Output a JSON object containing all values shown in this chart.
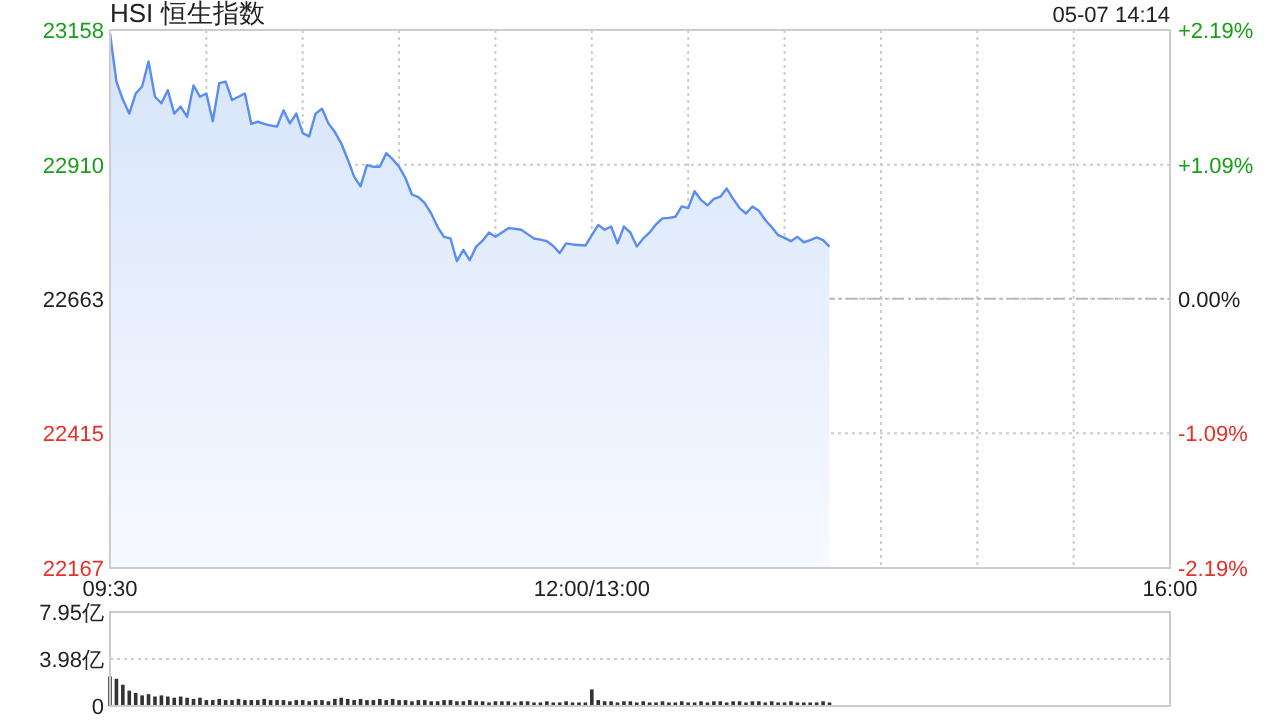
{
  "chart_data": [
    {
      "type": "area",
      "title": "HSI 恒生指数",
      "annotations": [
        "05-07 14:14"
      ],
      "color": "#5b8def",
      "categories": [
        "09:30",
        null,
        null,
        null,
        null,
        null,
        null,
        null,
        null,
        null,
        null,
        null,
        null,
        null,
        null,
        null,
        null,
        null,
        null,
        null,
        null,
        null,
        null,
        null,
        null,
        null,
        null,
        null,
        null,
        null,
        null,
        null,
        null,
        null,
        null,
        null,
        null,
        null,
        null,
        null,
        null,
        null,
        null,
        null,
        null,
        null,
        null,
        null,
        null,
        null,
        null,
        null,
        null,
        null,
        null,
        null,
        null,
        null,
        null,
        null,
        null,
        null,
        null,
        null,
        null,
        null,
        null,
        null,
        null,
        null,
        null,
        null,
        null,
        null,
        null,
        "12:00/13:00",
        null,
        null,
        null,
        null,
        null,
        null,
        null,
        null,
        null,
        null,
        null,
        null,
        null,
        null,
        null,
        null,
        null,
        null,
        null,
        null,
        null,
        null,
        null,
        null,
        null,
        null,
        null,
        null,
        null,
        null,
        null,
        null,
        null,
        null,
        null,
        null,
        null,
        null,
        null,
        null,
        null,
        null,
        null,
        null,
        null,
        null,
        null,
        null,
        null,
        null,
        null,
        null,
        null,
        null,
        null,
        null,
        null,
        null,
        null,
        null,
        null,
        null,
        null,
        null,
        null,
        null,
        null,
        null,
        null,
        null,
        null,
        null,
        null,
        null,
        null,
        null,
        null,
        null,
        null,
        null,
        null,
        null,
        null,
        null,
        null,
        null,
        null,
        null,
        null,
        "16:00"
      ],
      "values": [
        23152,
        23063,
        23030,
        23004,
        23041,
        23054,
        23100,
        23035,
        23023,
        23047,
        23004,
        23017,
        22998,
        23056,
        23035,
        23041,
        22990,
        23060,
        23063,
        23029,
        23035,
        23041,
        22985,
        22989,
        22985,
        22982,
        22980,
        23010,
        22986,
        23004,
        22968,
        22962,
        23004,
        23013,
        22986,
        22970,
        22949,
        22920,
        22888,
        22870,
        22909,
        22906,
        22906,
        22931,
        22920,
        22906,
        22885,
        22855,
        22850,
        22839,
        22820,
        22795,
        22777,
        22774,
        22732,
        22753,
        22734,
        22759,
        22770,
        22785,
        22777,
        22785,
        22793,
        22792,
        22790,
        22782,
        22774,
        22772,
        22769,
        22760,
        22747,
        22765,
        22763,
        22762,
        22761,
        22780,
        22799,
        22790,
        22796,
        22765,
        22796,
        22785,
        22759,
        22774,
        22785,
        22800,
        22811,
        22812,
        22814,
        22833,
        22830,
        22861,
        22845,
        22835,
        22847,
        22851,
        22866,
        22847,
        22830,
        22820,
        22833,
        22825,
        22808,
        22795,
        22780,
        22775,
        22769,
        22777,
        22767,
        22771,
        22776,
        22771,
        22759,
        null,
        null,
        null,
        null,
        null,
        null,
        null,
        null,
        null,
        null,
        null,
        null,
        null,
        null,
        null,
        null,
        null,
        null,
        null,
        null,
        null,
        null,
        null,
        null,
        null,
        null,
        null,
        null,
        null,
        null,
        null,
        null,
        null,
        null,
        null,
        null,
        null,
        null,
        null,
        null,
        null,
        null,
        null,
        null,
        null,
        null,
        null,
        null,
        null,
        null,
        null,
        null,
        null
      ],
      "ylim": [
        22167,
        23158
      ],
      "yticks": [
        22167,
        22415,
        22663,
        22910,
        23158
      ],
      "y2lim": [
        -2.19,
        2.19
      ],
      "y2ticks": [
        {
          "value": -2.19,
          "label": "-2.19%"
        },
        {
          "value": -1.09,
          "label": "-1.09%"
        },
        {
          "value": 0,
          "label": "0.00%"
        },
        {
          "value": 1.09,
          "label": "+1.09%"
        },
        {
          "value": 2.19,
          "label": "+2.19%"
        }
      ],
      "ref_lines": [
        {
          "axis": "y",
          "value": 22663,
          "line_style": "dashed",
          "color": "#bbbbbb"
        }
      ],
      "grid": true
    },
    {
      "type": "bar",
      "color": "#333333",
      "categories": [
        null,
        null,
        null,
        null,
        null,
        null,
        null,
        null,
        null,
        null,
        null,
        null,
        null,
        null,
        null,
        null,
        null,
        null,
        null,
        null,
        null,
        null,
        null,
        null,
        null,
        null,
        null,
        null,
        null,
        null,
        null,
        null,
        null,
        null,
        null,
        null,
        null,
        null,
        null,
        null,
        null,
        null,
        null,
        null,
        null,
        null,
        null,
        null,
        null,
        null,
        null,
        null,
        null,
        null,
        null,
        null,
        null,
        null,
        null,
        null,
        null,
        null,
        null,
        null,
        null,
        null,
        null,
        null,
        null,
        null,
        null,
        null,
        null,
        null,
        null,
        null,
        null,
        null,
        null,
        null,
        null,
        null,
        null,
        null,
        null,
        null,
        null,
        null,
        null,
        null,
        null,
        null,
        null,
        null,
        null,
        null,
        null,
        null,
        null,
        null,
        null,
        null,
        null,
        null,
        null,
        null,
        null,
        null,
        null,
        null,
        null,
        null,
        null,
        null,
        null,
        null,
        null,
        null,
        null,
        null,
        null,
        null,
        null,
        null,
        null,
        null,
        null,
        null,
        null,
        null,
        null,
        null,
        null,
        null,
        null,
        null,
        null,
        null,
        null,
        null,
        null,
        null,
        null,
        null,
        null,
        null,
        null,
        null,
        null,
        null,
        null,
        null,
        null,
        null,
        null,
        null,
        null,
        null,
        null,
        null,
        null,
        null,
        null,
        null,
        null,
        null
      ],
      "values": [
        2.5,
        2.3,
        1.8,
        1.3,
        1.1,
        0.9,
        1.0,
        0.8,
        0.9,
        0.8,
        0.7,
        0.8,
        0.7,
        0.6,
        0.7,
        0.5,
        0.5,
        0.6,
        0.5,
        0.5,
        0.6,
        0.5,
        0.5,
        0.5,
        0.6,
        0.5,
        0.5,
        0.5,
        0.4,
        0.5,
        0.5,
        0.4,
        0.5,
        0.5,
        0.4,
        0.6,
        0.7,
        0.6,
        0.5,
        0.6,
        0.5,
        0.5,
        0.6,
        0.5,
        0.6,
        0.5,
        0.5,
        0.4,
        0.5,
        0.5,
        0.4,
        0.4,
        0.5,
        0.5,
        0.4,
        0.4,
        0.5,
        0.4,
        0.4,
        0.3,
        0.4,
        0.4,
        0.4,
        0.3,
        0.4,
        0.4,
        0.3,
        0.3,
        0.4,
        0.3,
        0.3,
        0.4,
        0.3,
        0.3,
        0.3,
        1.4,
        0.5,
        0.4,
        0.4,
        0.3,
        0.4,
        0.4,
        0.3,
        0.4,
        0.3,
        0.3,
        0.4,
        0.3,
        0.3,
        0.4,
        0.3,
        0.3,
        0.4,
        0.3,
        0.4,
        0.4,
        0.3,
        0.4,
        0.4,
        0.3,
        0.4,
        0.4,
        0.3,
        0.4,
        0.3,
        0.3,
        0.4,
        0.3,
        0.3,
        0.3,
        0.3,
        0.4,
        0.3,
        null,
        null,
        null,
        null,
        null,
        null,
        null,
        null,
        null,
        null,
        null,
        null,
        null,
        null,
        null,
        null,
        null,
        null,
        null,
        null,
        null,
        null,
        null,
        null,
        null,
        null,
        null,
        null,
        null,
        null,
        null,
        null,
        null,
        null,
        null,
        null,
        null,
        null,
        null,
        null,
        null,
        null,
        null,
        null,
        null,
        null,
        null,
        null,
        null,
        null,
        null,
        null,
        null
      ],
      "ylim": [
        0,
        7.95
      ],
      "yticks": [
        {
          "value": 0,
          "label": "0"
        },
        {
          "value": 3.98,
          "label": "3.98亿"
        },
        {
          "value": 7.95,
          "label": "7.95亿"
        }
      ],
      "grid": "y"
    }
  ]
}
